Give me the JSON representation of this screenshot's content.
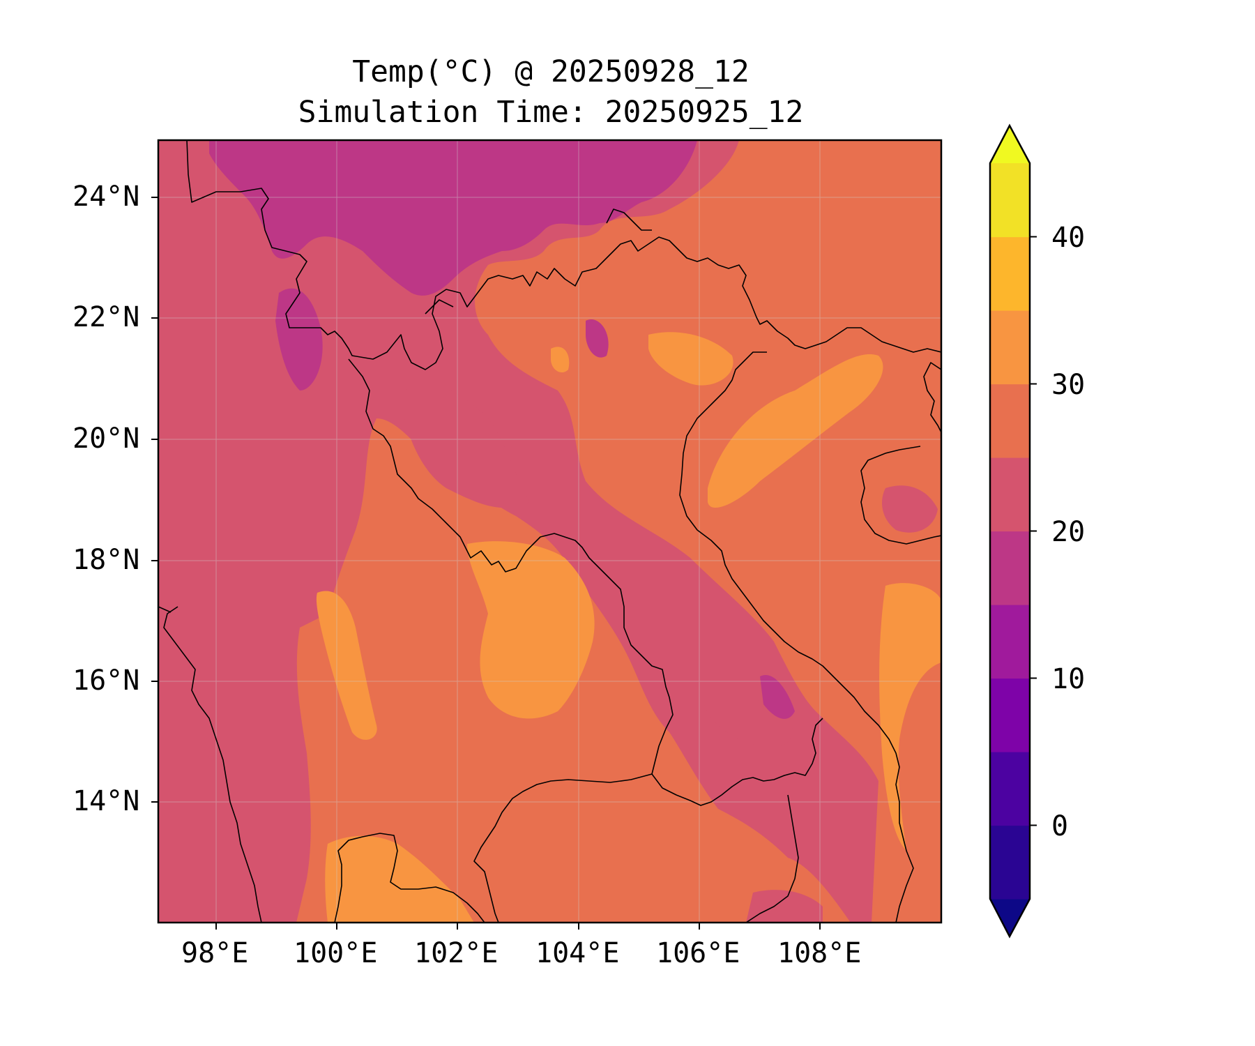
{
  "title": "Temp(°C) @ 20250928_12",
  "subtitle": "Simulation Time: 20250925_12",
  "colors": {
    "levels": [
      "#0d0887",
      "#2a0593",
      "#4c02a1",
      "#7e03a8",
      "#a01a9c",
      "#bd3786",
      "#d5546e",
      "#e8704f",
      "#f89541",
      "#fdb62c",
      "#f2e126",
      "#f0f921"
    ],
    "coast": "#000000",
    "frame": "#000000"
  },
  "map": {
    "lon_range": [
      97,
      110
    ],
    "lat_range": [
      12,
      25
    ],
    "lon_ticks": [
      "98°E",
      "100°E",
      "102°E",
      "104°E",
      "106°E",
      "108°E"
    ],
    "lat_ticks": [
      "24°N",
      "22°N",
      "20°N",
      "18°N",
      "16°N",
      "14°N"
    ],
    "field": "temperature",
    "gridlines": true
  },
  "colorbar": {
    "ticks": [
      "40",
      "30",
      "20",
      "10",
      "0"
    ],
    "tick_values": [
      40,
      30,
      20,
      10,
      0
    ],
    "range": [
      -5,
      45
    ],
    "step": 5,
    "extend": "both",
    "orientation": "vertical"
  }
}
